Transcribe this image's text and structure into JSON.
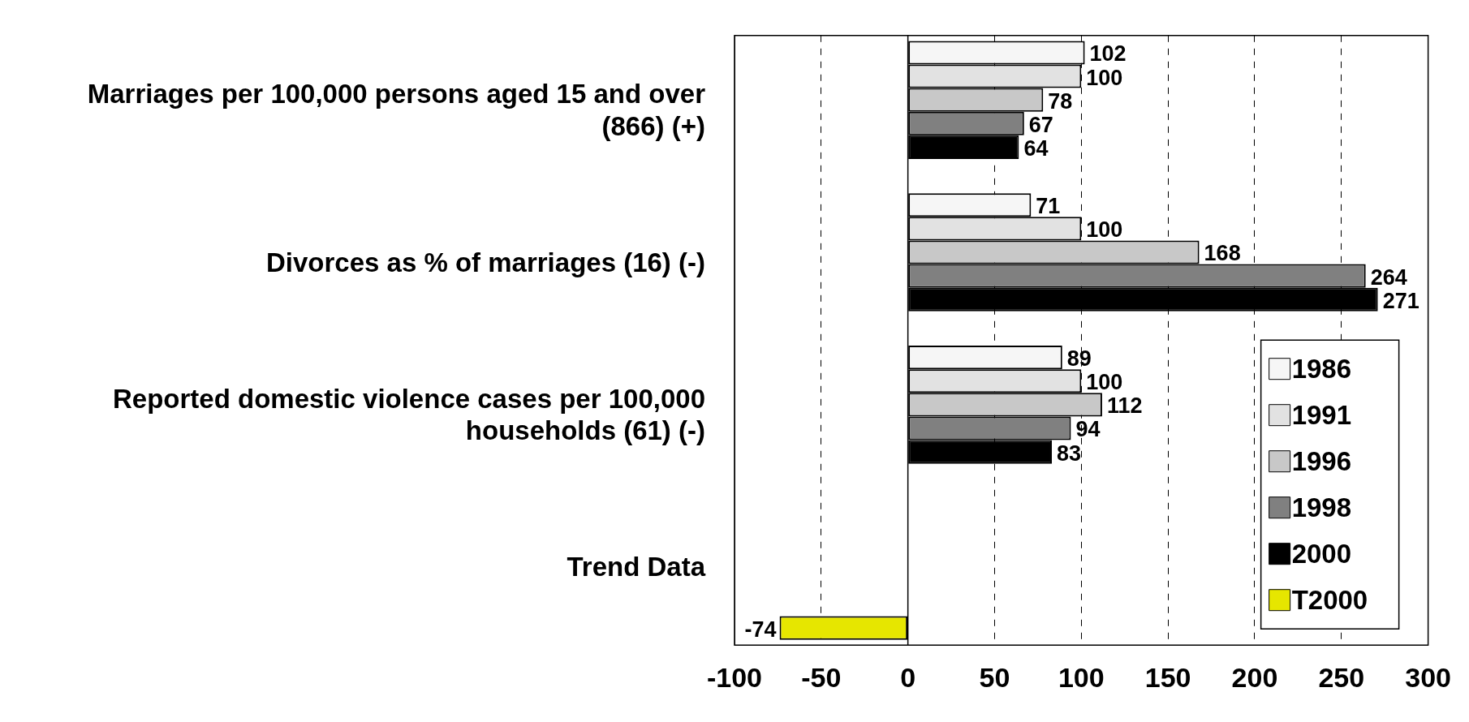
{
  "chart_data": {
    "type": "bar",
    "orientation": "horizontal",
    "categories": [
      "Marriages per 100,000 persons aged 15 and over (866) (+)",
      "Divorces as % of marriages (16) (-)",
      "Reported domestic violence cases per 100,000 households (61) (-)",
      "Trend Data"
    ],
    "series": [
      {
        "name": "1986",
        "color": "#f6f6f6",
        "values": [
          102,
          71,
          89,
          null
        ]
      },
      {
        "name": "1991",
        "color": "#e2e2e2",
        "values": [
          100,
          100,
          100,
          null
        ]
      },
      {
        "name": "1996",
        "color": "#c8c8c8",
        "values": [
          78,
          168,
          112,
          null
        ]
      },
      {
        "name": "1998",
        "color": "#808080",
        "values": [
          67,
          264,
          94,
          null
        ]
      },
      {
        "name": "2000",
        "color": "#000000",
        "values": [
          64,
          271,
          83,
          null
        ]
      },
      {
        "name": "T2000",
        "color": "#e6e600",
        "values": [
          null,
          null,
          null,
          -74
        ]
      }
    ],
    "xlim": [
      -100,
      300
    ],
    "xticks": [
      -100,
      -50,
      0,
      50,
      100,
      150,
      200,
      250,
      300
    ],
    "grid": "x",
    "legend": "bottom right",
    "data_labels": true
  }
}
